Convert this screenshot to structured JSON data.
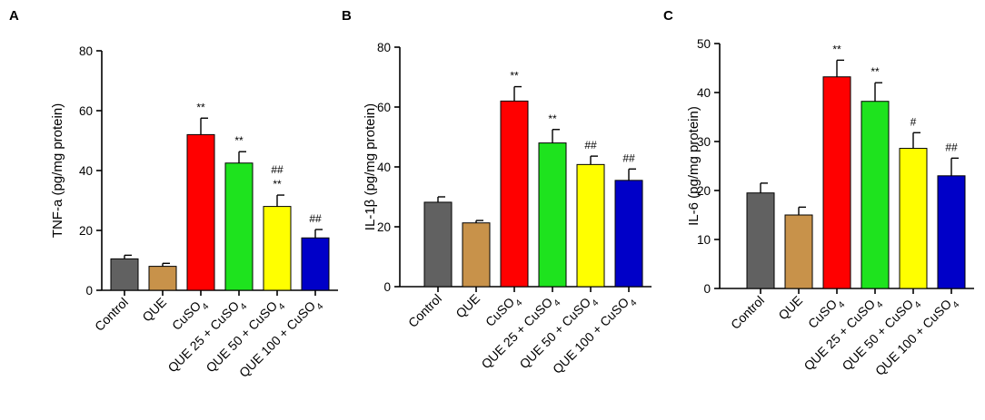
{
  "chart_data": [
    {
      "type": "bar",
      "panel": "A",
      "ylabel": "TNF-a (pg/mg protein)",
      "ylim": [
        0,
        80
      ],
      "yticks": [
        "0",
        "20",
        "40",
        "60",
        "80"
      ],
      "categories": [
        "Control",
        "QUE",
        "CuSO",
        "QUE 25 + CuSO",
        "QUE 50 + CuSO",
        "QUE 100 + CuSO"
      ],
      "subscripts": [
        "",
        "",
        "4",
        "4",
        "4",
        "4"
      ],
      "values": [
        10.5,
        8.0,
        52.0,
        42.5,
        28.0,
        17.5
      ],
      "errors": [
        1.2,
        1.0,
        5.5,
        3.8,
        3.8,
        2.8
      ],
      "annotations": [
        "",
        "",
        "**",
        "**",
        "**|##",
        "##"
      ]
    },
    {
      "type": "bar",
      "panel": "B",
      "ylabel": "IL-1β (pg/mg protein)",
      "ylim": [
        0,
        80
      ],
      "yticks": [
        "0",
        "20",
        "40",
        "60",
        "80"
      ],
      "categories": [
        "Control",
        "QUE",
        "CuSO",
        "QUE 25 + CuSO",
        "QUE 50 + CuSO",
        "QUE 100 + CuSO"
      ],
      "subscripts": [
        "",
        "",
        "4",
        "4",
        "4",
        "4"
      ],
      "values": [
        28.2,
        21.3,
        62.0,
        48.0,
        40.8,
        35.5
      ],
      "errors": [
        1.8,
        0.8,
        4.8,
        4.5,
        2.8,
        3.8
      ],
      "annotations": [
        "",
        "",
        "**",
        "**",
        "##",
        "##"
      ]
    },
    {
      "type": "bar",
      "panel": "C",
      "ylabel": "IL-6 (pg/mg protein)",
      "ylim": [
        0,
        50
      ],
      "yticks": [
        "0",
        "10",
        "20",
        "30",
        "40",
        "50"
      ],
      "categories": [
        "Control",
        "QUE",
        "CuSO",
        "QUE 25 + CuSO",
        "QUE 50 + CuSO",
        "QUE 100 + CuSO"
      ],
      "subscripts": [
        "",
        "",
        "4",
        "4",
        "4",
        "4"
      ],
      "values": [
        19.5,
        15.0,
        43.2,
        38.2,
        28.6,
        23.0
      ],
      "errors": [
        2.0,
        1.6,
        3.4,
        3.8,
        3.2,
        3.6
      ],
      "annotations": [
        "",
        "",
        "**",
        "**",
        "#",
        "##"
      ]
    }
  ],
  "colors": [
    "#616161",
    "#c8924a",
    "#ff0000",
    "#1ee31e",
    "#ffff00",
    "#0000c8"
  ]
}
